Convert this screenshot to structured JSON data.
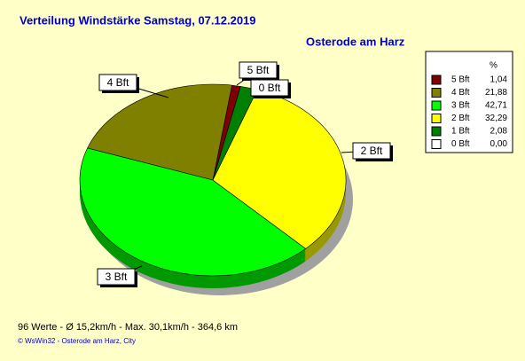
{
  "chart_data": {
    "type": "pie",
    "title": "Verteilung Windstärke  Samstag, 07.12.2019",
    "subtitle": "Osterode am Harz",
    "legend_header": "%",
    "categories": [
      "5 Bft",
      "4 Bft",
      "3 Bft",
      "2 Bft",
      "1 Bft",
      "0 Bft"
    ],
    "values": [
      1.04,
      21.88,
      42.71,
      32.29,
      2.08,
      0.0
    ],
    "value_labels": [
      "1,04",
      "21,88",
      "42,71",
      "32,29",
      "2,08",
      "0,00"
    ],
    "colors": [
      "#800000",
      "#808000",
      "#00ff00",
      "#ffff00",
      "#008000",
      "#ffffff"
    ],
    "footer": "96 Werte   -   Ø 15,2km/h   -   Max. 30,1km/h   -   364,6 km",
    "copyright": "© WsWin32  -  Osterode am Harz, City"
  }
}
